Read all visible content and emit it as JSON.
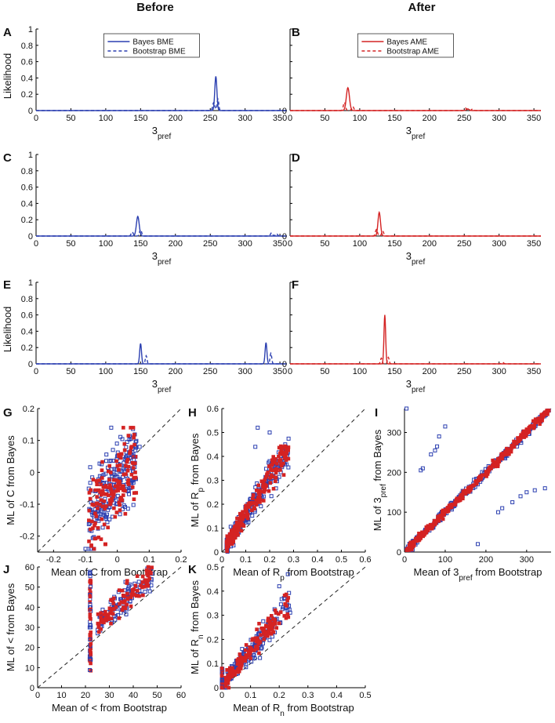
{
  "column_titles": {
    "before": "Before",
    "after": "After"
  },
  "colors": {
    "blue": "#2b3fb0",
    "red": "#d42323",
    "diag": "#222222"
  },
  "chart_data": [
    {
      "id": "A",
      "type": "line",
      "letter": "A",
      "color": "blue",
      "xlabel": "3",
      "xlabel_sub": "pref",
      "ylabel": "Likelihood",
      "xlim": [
        0,
        360
      ],
      "ylim": [
        0,
        1
      ],
      "xticks": [
        0,
        50,
        100,
        150,
        200,
        250,
        300,
        350
      ],
      "yticks": [
        0,
        0.2,
        0.4,
        0.6,
        0.8,
        1
      ],
      "ytick_labels": [
        "0",
        "0.2",
        "0.4",
        "0.6",
        "0.8",
        "1"
      ],
      "legend": [
        "Bayes BME",
        "Bootstrap BME"
      ],
      "series": [
        {
          "name": "Bayes BME",
          "style": "solid",
          "peaks": [
            [
              258,
              0.42,
              1.5
            ]
          ]
        },
        {
          "name": "Bootstrap BME",
          "style": "dashed",
          "peaks": [
            [
              255,
              0.1,
              1.5
            ],
            [
              261,
              0.14,
              1.2
            ]
          ]
        }
      ]
    },
    {
      "id": "B",
      "type": "line",
      "letter": "B",
      "color": "red",
      "xlabel": "3",
      "xlabel_sub": "pref",
      "ylabel": "",
      "xlim": [
        0,
        360
      ],
      "ylim": [
        0,
        1
      ],
      "xticks": [
        0,
        50,
        100,
        150,
        200,
        250,
        300,
        350
      ],
      "yticks": [
        0,
        0.2,
        0.4,
        0.6,
        0.8,
        1
      ],
      "ytick_labels": [
        "0",
        "",
        "",
        "",
        "",
        ""
      ],
      "legend": [
        "Bayes AME",
        "Bootstrap AME"
      ],
      "series": [
        {
          "name": "Bayes AME",
          "style": "solid",
          "peaks": [
            [
              83,
              0.28,
              2.2
            ],
            [
              255,
              0.02,
              2
            ]
          ]
        },
        {
          "name": "Bootstrap AME",
          "style": "dashed",
          "peaks": [
            [
              78,
              0.1,
              1.5
            ],
            [
              90,
              0.05,
              1.5
            ],
            [
              252,
              0.03,
              1.5
            ],
            [
              262,
              0.02,
              1.5
            ]
          ]
        }
      ]
    },
    {
      "id": "C",
      "type": "line",
      "letter": "C",
      "color": "blue",
      "xlabel": "3",
      "xlabel_sub": "pref",
      "ylabel": "",
      "xlim": [
        0,
        360
      ],
      "ylim": [
        0,
        1
      ],
      "xticks": [
        0,
        50,
        100,
        150,
        200,
        250,
        300,
        350
      ],
      "yticks": [
        0,
        0.2,
        0.4,
        0.6,
        0.8,
        1
      ],
      "ytick_labels": [
        "0",
        "0.2",
        "0.4",
        "0.6",
        "0.8",
        "1"
      ],
      "series": [
        {
          "name": "Bayes BME",
          "style": "solid",
          "peaks": [
            [
              146,
              0.24,
              2
            ]
          ]
        },
        {
          "name": "Bootstrap BME",
          "style": "dashed",
          "peaks": [
            [
              138,
              0.05,
              1.5
            ],
            [
              150,
              0.08,
              1.5
            ],
            [
              338,
              0.04,
              1.5
            ],
            [
              345,
              0.03,
              1.5
            ]
          ]
        }
      ]
    },
    {
      "id": "D",
      "type": "line",
      "letter": "D",
      "color": "red",
      "xlabel": "3",
      "xlabel_sub": "pref",
      "ylabel": "",
      "xlim": [
        0,
        360
      ],
      "ylim": [
        0,
        1
      ],
      "xticks": [
        0,
        50,
        100,
        150,
        200,
        250,
        300,
        350
      ],
      "yticks": [
        0,
        0.2,
        0.4,
        0.6,
        0.8,
        1
      ],
      "ytick_labels": [
        "0",
        "",
        "",
        "",
        "",
        ""
      ],
      "series": [
        {
          "name": "Bayes AME",
          "style": "solid",
          "peaks": [
            [
              128,
              0.29,
              1.8
            ]
          ]
        },
        {
          "name": "Bootstrap AME",
          "style": "dashed",
          "peaks": [
            [
              124,
              0.08,
              1.5
            ],
            [
              133,
              0.06,
              1.5
            ]
          ]
        }
      ]
    },
    {
      "id": "E",
      "type": "line",
      "letter": "E",
      "color": "blue",
      "xlabel": "3",
      "xlabel_sub": "pref",
      "ylabel": "Likelihood",
      "xlim": [
        0,
        360
      ],
      "ylim": [
        0,
        1
      ],
      "xticks": [
        0,
        50,
        100,
        150,
        200,
        250,
        300,
        350
      ],
      "yticks": [
        0,
        0.2,
        0.4,
        0.6,
        0.8,
        1
      ],
      "ytick_labels": [
        "0",
        "0.2",
        "0.4",
        "0.6",
        "0.8",
        "1"
      ],
      "series": [
        {
          "name": "Bayes BME",
          "style": "solid",
          "peaks": [
            [
              150,
              0.25,
              1.3
            ],
            [
              330,
              0.26,
              1.3
            ]
          ]
        },
        {
          "name": "Bootstrap BME",
          "style": "dashed",
          "peaks": [
            [
              158,
              0.1,
              1.2
            ],
            [
              337,
              0.13,
              1.2
            ]
          ]
        }
      ]
    },
    {
      "id": "F",
      "type": "line",
      "letter": "F",
      "color": "red",
      "xlabel": "3",
      "xlabel_sub": "pref",
      "ylabel": "",
      "xlim": [
        0,
        360
      ],
      "ylim": [
        0,
        1
      ],
      "xticks": [
        0,
        50,
        100,
        150,
        200,
        250,
        300,
        350
      ],
      "yticks": [
        0,
        0.2,
        0.4,
        0.6,
        0.8,
        1
      ],
      "ytick_labels": [
        "0",
        "",
        "",
        "",
        "",
        ""
      ],
      "series": [
        {
          "name": "Bayes AME",
          "style": "solid",
          "peaks": [
            [
              136,
              0.6,
              1.2
            ]
          ]
        },
        {
          "name": "Bootstrap AME",
          "style": "dashed",
          "peaks": [
            [
              131,
              0.07,
              1.2
            ],
            [
              141,
              0.08,
              1.2
            ],
            [
              305,
              0.02,
              1.5
            ]
          ]
        }
      ]
    },
    {
      "id": "G",
      "type": "scatter",
      "letter": "G",
      "xlabel": "Mean of C from Bootstrap",
      "ylabel": "ML of C from Bayes",
      "xlim": [
        -0.25,
        0.2
      ],
      "ylim": [
        -0.25,
        0.2
      ],
      "xticks": [
        -0.2,
        -0.1,
        0,
        0.1,
        0.2
      ],
      "yticks": [
        -0.2,
        -0.1,
        0,
        0.1,
        0.2
      ],
      "xtick_labels": [
        "-0.2",
        "-0.1",
        "0",
        "0.1",
        "0.2"
      ],
      "ytick_labels": [
        "-0.2",
        "-0.1",
        "0",
        "0.1",
        "0.2"
      ],
      "cloud": {
        "kind": "band",
        "n_blue": 220,
        "n_red": 150,
        "x_range": [
          -0.09,
          0.06
        ],
        "slope": 1.1,
        "offset": -0.03,
        "spread": 0.11,
        "y_clip": [
          -0.24,
          0.14
        ],
        "extra_blue": [
          [
            0.07,
            0.08
          ],
          [
            0.05,
            0.05
          ],
          [
            -0.1,
            -0.24
          ]
        ]
      }
    },
    {
      "id": "H",
      "type": "scatter",
      "letter": "H",
      "xlabel": "Mean of R",
      "xlabel_sub": "p",
      "xlabel_tail": " from Bootstrap",
      "ylabel": "ML of R",
      "ylabel_sub": "p",
      "ylabel_tail": " from Bayes",
      "xlim": [
        0,
        0.6
      ],
      "ylim": [
        0,
        0.6
      ],
      "xticks": [
        0,
        0.1,
        0.2,
        0.3,
        0.4,
        0.5,
        0.6
      ],
      "yticks": [
        0,
        0.1,
        0.2,
        0.3,
        0.4,
        0.5,
        0.6
      ],
      "xtick_labels": [
        "0",
        "0.1",
        "0.2",
        "0.3",
        "0.4",
        "0.5",
        "0.6"
      ],
      "ytick_labels": [
        "0",
        "0.1",
        "0.2",
        "0.3",
        "0.4",
        "0.5",
        "0.6"
      ],
      "cloud": {
        "kind": "fan",
        "n_blue": 260,
        "n_red": 200,
        "x_range": [
          0.02,
          0.28
        ],
        "slope": 1.55,
        "offset": 0.0,
        "spread": 0.05,
        "y_clip": [
          0.0,
          0.55
        ],
        "extra_blue": [
          [
            0.15,
            0.52
          ],
          [
            0.2,
            0.5
          ],
          [
            0.14,
            0.44
          ]
        ]
      }
    },
    {
      "id": "I",
      "type": "scatter",
      "letter": "I",
      "xlabel": "Mean of  3",
      "xlabel_sub": "pref",
      "xlabel_tail": " from Bootstrap",
      "ylabel": "ML of  3",
      "ylabel_sub": "pref",
      "ylabel_tail": " from Bayes",
      "xlim": [
        0,
        360
      ],
      "ylim": [
        0,
        360
      ],
      "xticks": [
        0,
        100,
        200,
        300
      ],
      "yticks": [
        0,
        100,
        200,
        300
      ],
      "xtick_labels": [
        "0",
        "100",
        "200",
        "300"
      ],
      "ytick_labels": [
        "0",
        "100",
        "200",
        "300"
      ],
      "cloud": {
        "kind": "diag",
        "n_blue": 260,
        "n_red": 320,
        "x_range": [
          5,
          355
        ],
        "slope": 1.0,
        "offset": 0,
        "spread": 8,
        "y_clip": [
          5,
          355
        ],
        "extra_blue": [
          [
            40,
            205
          ],
          [
            45,
            210
          ],
          [
            65,
            245
          ],
          [
            75,
            255
          ],
          [
            80,
            265
          ],
          [
            85,
            290
          ],
          [
            100,
            315
          ],
          [
            180,
            20
          ],
          [
            230,
            100
          ],
          [
            240,
            110
          ],
          [
            265,
            125
          ],
          [
            285,
            140
          ],
          [
            300,
            150
          ],
          [
            320,
            155
          ],
          [
            345,
            160
          ],
          [
            5,
            360
          ]
        ]
      }
    },
    {
      "id": "J",
      "type": "scatter",
      "letter": "J",
      "xlabel": "Mean of  < from Bootstrap",
      "ylabel": "ML of  < from Bayes",
      "xlim": [
        0,
        60
      ],
      "ylim": [
        0,
        60
      ],
      "xticks": [
        0,
        10,
        20,
        30,
        40,
        50,
        60
      ],
      "yticks": [
        0,
        10,
        20,
        30,
        40,
        50,
        60
      ],
      "xtick_labels": [
        "0",
        "10",
        "20",
        "30",
        "40",
        "50",
        "60"
      ],
      "ytick_labels": [
        "0",
        "10",
        "20",
        "30",
        "40",
        "50",
        "60"
      ],
      "cloud": {
        "kind": "column",
        "n_blue": 110,
        "n_red": 90,
        "x_range": [
          25,
          48
        ],
        "slope": 1.05,
        "offset": 5,
        "spread": 6,
        "y_clip": [
          25,
          60
        ],
        "column_x": 22,
        "column_y": [
          8,
          60
        ],
        "extra_blue": []
      }
    },
    {
      "id": "K",
      "type": "scatter",
      "letter": "K",
      "xlabel": "Mean of R",
      "xlabel_sub": "n",
      "xlabel_tail": " from Bootstrap",
      "ylabel": "ML of R",
      "ylabel_sub": "n",
      "ylabel_tail": " from Bayes",
      "xlim": [
        0,
        0.5
      ],
      "ylim": [
        0,
        0.5
      ],
      "xticks": [
        0,
        0.1,
        0.2,
        0.3,
        0.4,
        0.5
      ],
      "yticks": [
        0,
        0.1,
        0.2,
        0.3,
        0.4,
        0.5
      ],
      "xtick_labels": [
        "0",
        "0.1",
        "0.2",
        "0.3",
        "0.4",
        "0.5"
      ],
      "ytick_labels": [
        "0",
        "0.1",
        "0.2",
        "0.3",
        "0.4",
        "0.5"
      ],
      "cloud": {
        "kind": "fan",
        "n_blue": 230,
        "n_red": 180,
        "x_range": [
          0.0,
          0.24
        ],
        "slope": 1.45,
        "offset": 0.01,
        "spread": 0.05,
        "y_clip": [
          0.0,
          0.48
        ],
        "column_x": 0.0,
        "column_y": [
          0,
          0.08
        ],
        "extra_blue": [
          [
            0.23,
            0.47
          ],
          [
            0.2,
            0.42
          ]
        ]
      }
    }
  ]
}
